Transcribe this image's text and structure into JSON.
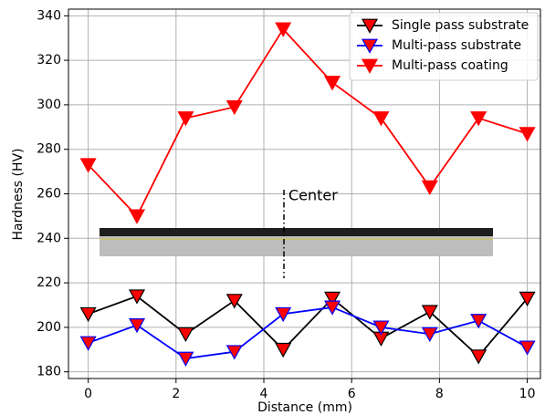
{
  "chart_data": {
    "type": "line",
    "annotation": "Center",
    "x_label": "Distance (mm)",
    "y_label": "Hardness (HV)",
    "x": [
      0,
      1.11,
      2.22,
      3.33,
      4.44,
      5.56,
      6.67,
      7.78,
      8.89,
      10
    ],
    "series": [
      {
        "name": "Single pass substrate",
        "color": "#000000",
        "marker_fill": "#ff0000",
        "values": [
          206,
          214,
          197,
          212,
          190,
          213,
          195,
          207,
          187,
          213
        ]
      },
      {
        "name": "Multi-pass substrate",
        "color": "#0000ff",
        "marker_fill": "#ff0000",
        "values": [
          193,
          201,
          186,
          189,
          206,
          209,
          200,
          197,
          203,
          191
        ]
      },
      {
        "name": "Multi-pass coating",
        "color": "#ff0000",
        "marker_fill": "#ff0000",
        "values": [
          273,
          250,
          294,
          299,
          334,
          310,
          294,
          263,
          294,
          287
        ]
      }
    ],
    "xlim": [
      -0.45,
      10.3
    ],
    "ylim": [
      177,
      343
    ],
    "xticks": [
      0,
      2,
      4,
      6,
      8,
      10
    ],
    "yticks": [
      180,
      200,
      220,
      240,
      260,
      280,
      300,
      320,
      340
    ],
    "grid": true,
    "legend": "upper right"
  }
}
